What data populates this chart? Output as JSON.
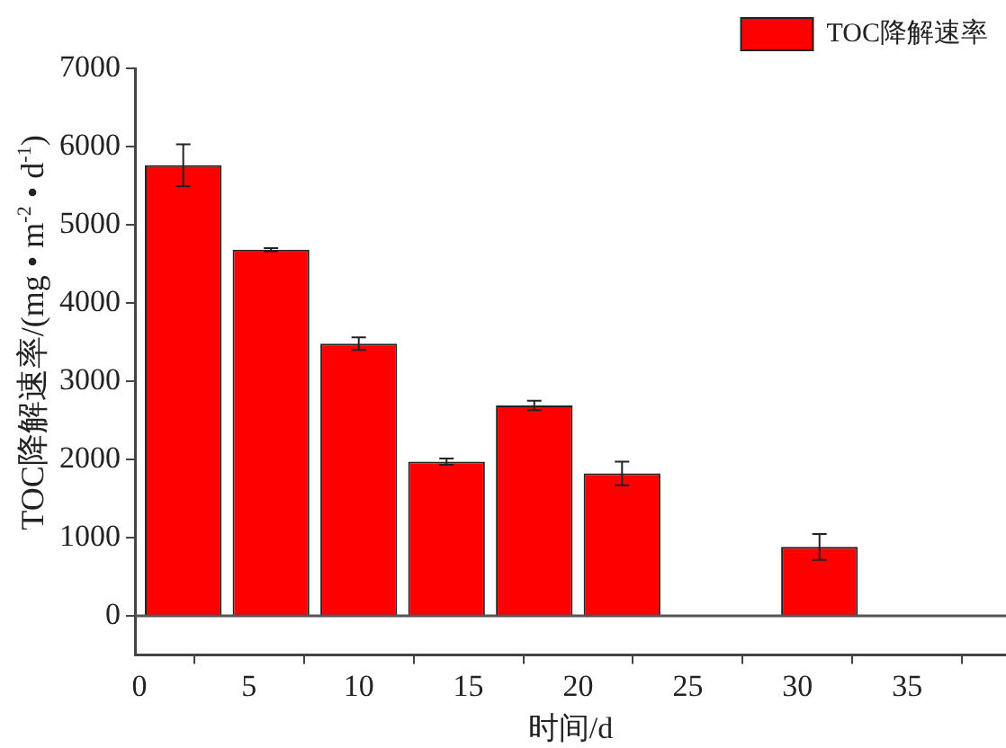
{
  "chart_data": {
    "type": "bar",
    "xlabel": "时间/d",
    "ylabel": "TOC降解速率/(mg • m$^{-2}$ • d$^{-1}$)",
    "x": [
      2,
      6,
      10,
      14,
      18,
      22,
      31
    ],
    "series": [
      {
        "name": "TOC降解速率",
        "color": "#ff0000",
        "values": [
          5760,
          4680,
          3480,
          1970,
          2690,
          1820,
          880
        ],
        "errors": [
          270,
          20,
          80,
          40,
          60,
          150,
          165
        ]
      }
    ],
    "xlim": [
      -0.2,
      39.5
    ],
    "xticks": [
      0,
      5,
      10,
      15,
      20,
      25,
      30,
      35
    ],
    "ylim": [
      -500,
      7000
    ],
    "yticks": [
      0,
      1000,
      2000,
      3000,
      4000,
      5000,
      6000,
      7000
    ],
    "ref_lines": [
      {
        "axis": "y",
        "value": 0,
        "color": "#555555"
      }
    ],
    "grid": false,
    "legend": "top right"
  }
}
